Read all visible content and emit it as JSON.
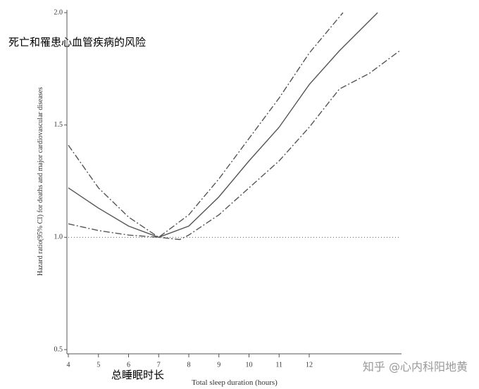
{
  "chart_data": {
    "type": "line",
    "title": "死亡和罹患心血管疾病的风险",
    "x_annotation": "总睡眠时长",
    "watermark": "知乎 @心内科阳地黄",
    "xlabel": "Total sleep duration (hours)",
    "ylabel": "Hazard ratio(95% CI) for deaths and major cardiovascular diseases",
    "xlim": [
      4,
      15
    ],
    "xticks": [
      4,
      5,
      6,
      7,
      8,
      9,
      10,
      11,
      12
    ],
    "ylim": [
      0.5,
      2.0
    ],
    "yticks": [
      {
        "value": 0.5,
        "label": "0.5"
      },
      {
        "value": 1,
        "label": "1.0"
      },
      {
        "value": 1.5,
        "label": "1.5"
      },
      {
        "value": 2,
        "label": "2.0"
      }
    ],
    "reference_y": 1,
    "series": [
      {
        "color": "#555555",
        "dash": "solid",
        "x": [
          4,
          5,
          6,
          7,
          8,
          9,
          10,
          11,
          12,
          13,
          14.27
        ],
        "values": [
          1.22,
          1.13,
          1.05,
          1.0,
          1.05,
          1.18,
          1.34,
          1.49,
          1.68,
          1.83,
          2.0
        ]
      },
      {
        "color": "#555555",
        "dash": "dash-dot",
        "x": [
          4,
          5,
          6,
          7,
          8,
          9,
          10,
          11,
          12,
          13.12
        ],
        "values": [
          1.41,
          1.22,
          1.09,
          1.0,
          1.1,
          1.26,
          1.44,
          1.62,
          1.82,
          2.0
        ]
      },
      {
        "color": "#555555",
        "dash": "dash-dot",
        "x": [
          4,
          5,
          6,
          7,
          7.7,
          8,
          9,
          10,
          11,
          12,
          13,
          14,
          15
        ],
        "values": [
          1.06,
          1.03,
          1.01,
          1.0,
          0.99,
          1.01,
          1.1,
          1.22,
          1.34,
          1.49,
          1.66,
          1.73,
          1.83
        ]
      }
    ]
  }
}
